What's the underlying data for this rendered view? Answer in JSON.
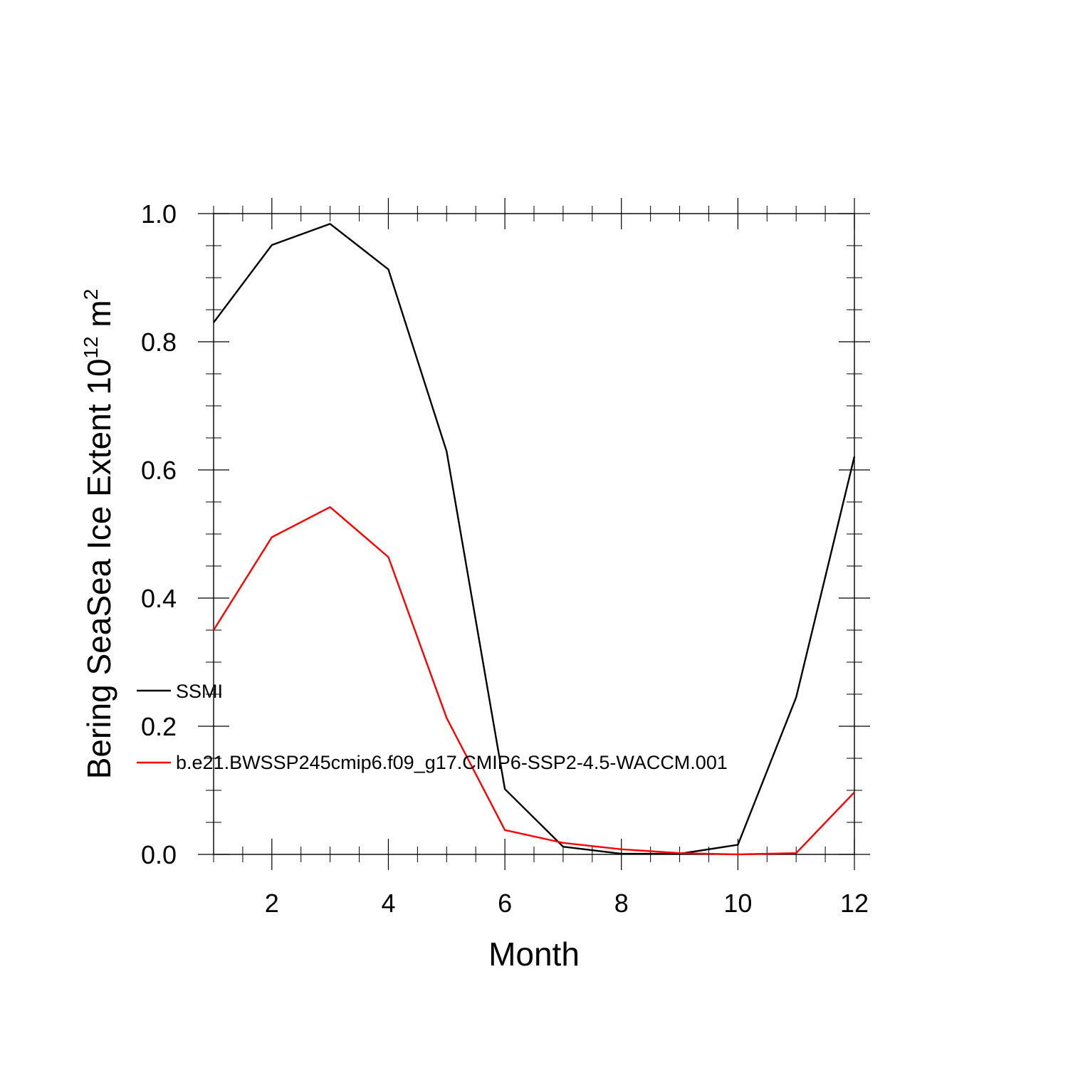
{
  "chart_data": {
    "type": "line",
    "title": "",
    "xlabel": "Month",
    "ylabel": {
      "main": "Bering SeaSea Ice Extent 10",
      "exponent": "12",
      "unit": "m",
      "unit_exponent": "2"
    },
    "xlim": [
      1,
      12
    ],
    "ylim": [
      0.0,
      1.0
    ],
    "x_ticks": [
      2,
      4,
      6,
      8,
      10,
      12
    ],
    "x_tick_labels": [
      "2",
      "4",
      "6",
      "8",
      "10",
      "12"
    ],
    "y_ticks": [
      0.0,
      0.2,
      0.4,
      0.6,
      0.8,
      1.0
    ],
    "y_tick_labels": [
      "0.0",
      "0.2",
      "0.4",
      "0.6",
      "0.8",
      "1.0"
    ],
    "x_minor_step": 0.5,
    "y_minor_step": 0.05,
    "grid": false,
    "legend_position": "left-inside",
    "x": [
      1,
      2,
      3,
      4,
      5,
      6,
      7,
      8,
      9,
      10,
      11,
      12
    ],
    "series": [
      {
        "name": "SSMI",
        "color": "#000000",
        "values": [
          0.83,
          0.951,
          0.984,
          0.913,
          0.629,
          0.102,
          0.012,
          0.001,
          0.001,
          0.015,
          0.245,
          0.621
        ]
      },
      {
        "name": "b.e21.BWSSP245cmip6.f09_g17.CMIP6-SSP2-4.5-WACCM.001",
        "color": "#ff0000",
        "values": [
          0.35,
          0.495,
          0.542,
          0.464,
          0.213,
          0.038,
          0.018,
          0.008,
          0.002,
          0.0,
          0.002,
          0.097
        ]
      }
    ]
  }
}
